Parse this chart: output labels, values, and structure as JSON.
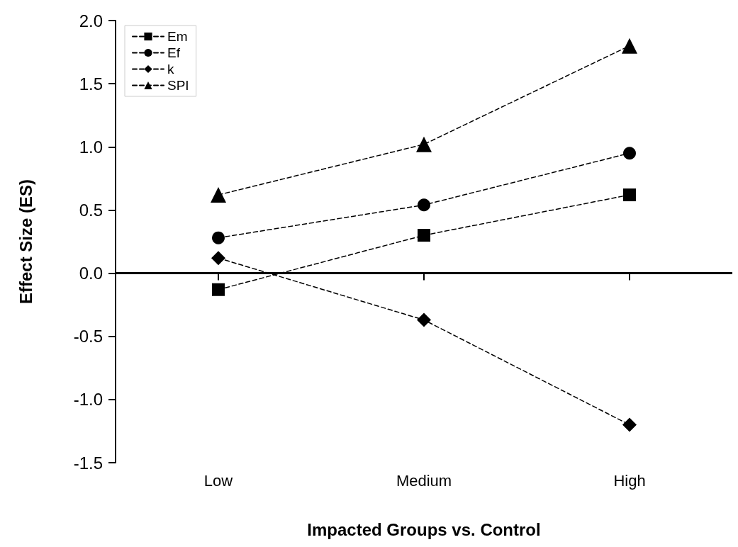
{
  "chart_data": {
    "type": "line",
    "xlabel": "Impacted Groups vs. Control",
    "ylabel": "Effect Size (ES)",
    "categories": [
      "Low",
      "Medium",
      "High"
    ],
    "series": [
      {
        "name": "Em",
        "color": "#000000",
        "marker": "square",
        "line_style": "dashed",
        "values": [
          -0.13,
          0.3,
          0.62
        ]
      },
      {
        "name": "Ef",
        "color": "#000000",
        "marker": "circle",
        "line_style": "dashed",
        "values": [
          0.28,
          0.54,
          0.95
        ]
      },
      {
        "name": "k",
        "color": "#000000",
        "marker": "diamond",
        "line_style": "dashed",
        "values": [
          0.12,
          -0.37,
          -1.2
        ]
      },
      {
        "name": "SPI",
        "color": "#000000",
        "marker": "triangle",
        "line_style": "dashed",
        "values": [
          0.62,
          1.02,
          1.8
        ]
      }
    ],
    "ylim": [
      -1.5,
      2
    ],
    "yticks": [
      {
        "value": -1.5,
        "label": "-1.5"
      },
      {
        "value": -1,
        "label": "-1.0"
      },
      {
        "value": -0.5,
        "label": "-0.5"
      },
      {
        "value": 0,
        "label": "0.0"
      },
      {
        "value": 0.5,
        "label": "0.5"
      },
      {
        "value": 1,
        "label": "1.0"
      },
      {
        "value": 1.5,
        "label": "1.5"
      },
      {
        "value": 2,
        "label": "2.0"
      }
    ],
    "ref_lines": [
      {
        "axis": "y",
        "value": 0,
        "color": "#000000",
        "line_style": "solid"
      }
    ],
    "grid": false,
    "legend": "top left"
  }
}
